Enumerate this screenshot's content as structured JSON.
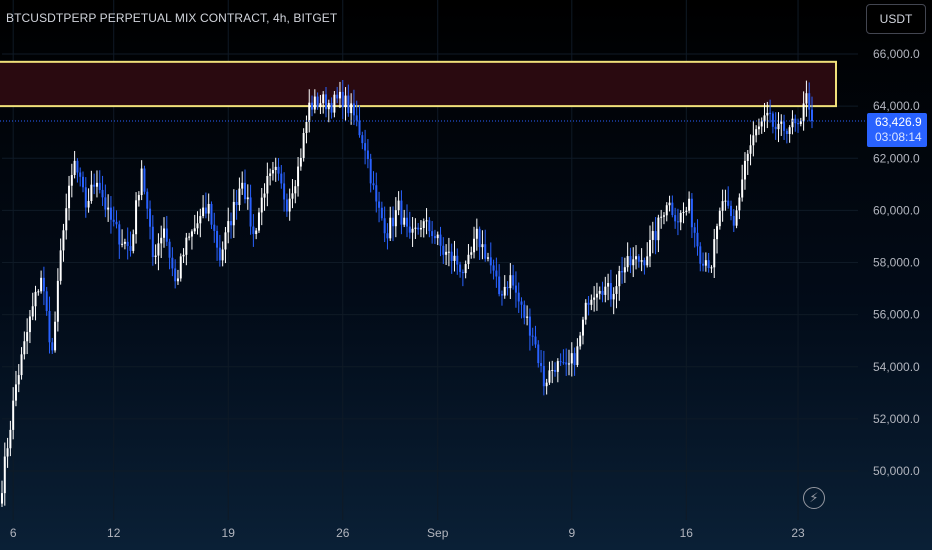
{
  "header": {
    "title": "BTCUSDTPERP PERPETUAL MIX CONTRACT, 4h, BITGET",
    "currency_button": "USDT"
  },
  "price_tag": {
    "price": "63,426.9",
    "countdown": "03:08:14",
    "color": "#2962ff"
  },
  "icons": {
    "bolt": "lightning-icon"
  },
  "colors": {
    "up_candle": "#ffffff",
    "down_candle": "#2962ff",
    "zone_border": "#f0e07a",
    "zone_fill": "#2a0a10",
    "price_line": "#2962ff"
  },
  "chart_data": {
    "type": "candlestick",
    "title": "BTCUSDTPERP PERPETUAL MIX CONTRACT, 4h, BITGET",
    "y_ticks": [
      "66,000.0",
      "64,000.0",
      "62,000.0",
      "60,000.0",
      "58,000.0",
      "56,000.0",
      "54,000.0",
      "52,000.0",
      "50,000.0"
    ],
    "y_tick_values": [
      66000,
      64000,
      62000,
      60000,
      58000,
      56000,
      54000,
      52000,
      50000
    ],
    "ylim": [
      48900,
      67800
    ],
    "x_ticks": [
      "6",
      "12",
      "19",
      "26",
      "Sep",
      "9",
      "16",
      "23"
    ],
    "x_tick_index": [
      4,
      40,
      81,
      122,
      156,
      204,
      245,
      285
    ],
    "last_price": 63426.9,
    "resistance_zone": [
      64000,
      65700
    ],
    "anchors": [
      [
        0,
        49500
      ],
      [
        5,
        53300
      ],
      [
        10,
        55800
      ],
      [
        14,
        57500
      ],
      [
        18,
        54500
      ],
      [
        22,
        59500
      ],
      [
        26,
        61800
      ],
      [
        30,
        60200
      ],
      [
        34,
        61300
      ],
      [
        38,
        59800
      ],
      [
        42,
        59000
      ],
      [
        46,
        58500
      ],
      [
        50,
        61700
      ],
      [
        54,
        58200
      ],
      [
        58,
        59400
      ],
      [
        62,
        57200
      ],
      [
        66,
        58700
      ],
      [
        70,
        59500
      ],
      [
        74,
        60100
      ],
      [
        78,
        58200
      ],
      [
        82,
        59700
      ],
      [
        86,
        61300
      ],
      [
        90,
        59000
      ],
      [
        94,
        60900
      ],
      [
        98,
        61400
      ],
      [
        102,
        60300
      ],
      [
        106,
        61600
      ],
      [
        110,
        64000
      ],
      [
        114,
        64200
      ],
      [
        118,
        64100
      ],
      [
        122,
        64300
      ],
      [
        126,
        63600
      ],
      [
        130,
        62500
      ],
      [
        134,
        60200
      ],
      [
        138,
        59200
      ],
      [
        142,
        60100
      ],
      [
        146,
        58800
      ],
      [
        150,
        59500
      ],
      [
        154,
        59200
      ],
      [
        158,
        58400
      ],
      [
        162,
        58100
      ],
      [
        166,
        57600
      ],
      [
        170,
        59000
      ],
      [
        174,
        58200
      ],
      [
        178,
        56800
      ],
      [
        182,
        57400
      ],
      [
        186,
        56200
      ],
      [
        190,
        55300
      ],
      [
        194,
        53400
      ],
      [
        198,
        54100
      ],
      [
        202,
        53800
      ],
      [
        206,
        54600
      ],
      [
        210,
        56700
      ],
      [
        214,
        57200
      ],
      [
        218,
        56800
      ],
      [
        222,
        57800
      ],
      [
        226,
        58000
      ],
      [
        230,
        58200
      ],
      [
        234,
        59100
      ],
      [
        238,
        60400
      ],
      [
        242,
        59700
      ],
      [
        246,
        60100
      ],
      [
        250,
        58300
      ],
      [
        254,
        58000
      ],
      [
        258,
        60400
      ],
      [
        262,
        59300
      ],
      [
        266,
        61900
      ],
      [
        270,
        63000
      ],
      [
        274,
        63500
      ],
      [
        278,
        63000
      ],
      [
        282,
        63300
      ],
      [
        286,
        63100
      ],
      [
        288,
        64700
      ],
      [
        290,
        63400
      ]
    ]
  }
}
